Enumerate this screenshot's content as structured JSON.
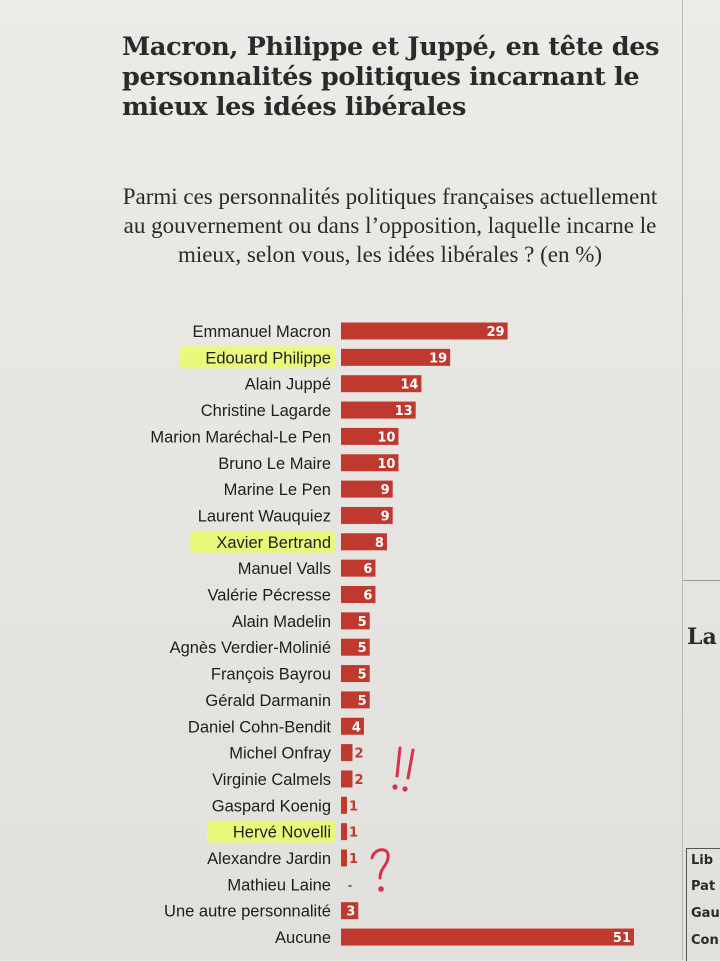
{
  "title": "Macron, Philippe et Juppé, en tête des personnalités politiques incarnant le mieux les idées libérales",
  "subtitle": "Parmi ces personnalités politiques françaises actuellement au gouvernement ou dans l’opposition, laquelle incarne le mieux, selon vous, les idées libérales ? (en %)",
  "colors": {
    "bar": "#c0392f",
    "highlight": "#e9fb6a",
    "handwriting": "#d9304d"
  },
  "handwritten_marks": [
    "!!",
    "?"
  ],
  "chart_data": {
    "type": "bar",
    "orientation": "horizontal",
    "title": "Macron, Philippe et Juppé, en tête des personnalités politiques incarnant le mieux les idées libérales",
    "subtitle": "Parmi ces personnalités politiques françaises actuellement au gouvernement ou dans l’opposition, laquelle incarne le mieux, selon vous, les idées libérales ? (en %)",
    "unit": "%",
    "xlim": [
      0,
      51
    ],
    "grid": false,
    "legend": "none",
    "categories": [
      "Emmanuel Macron",
      "Edouard Philippe",
      "Alain Juppé",
      "Christine Lagarde",
      "Marion Maréchal-Le Pen",
      "Bruno Le Maire",
      "Marine Le Pen",
      "Laurent Wauquiez",
      "Xavier Bertrand",
      "Manuel Valls",
      "Valérie Pécresse",
      "Alain Madelin",
      "Agnès Verdier-Molinié",
      "François Bayrou",
      "Gérald Darmanin",
      "Daniel Cohn-Bendit",
      "Michel Onfray",
      "Virginie Calmels",
      "Gaspard Koenig",
      "Hervé Novelli",
      "Alexandre Jardin",
      "Mathieu Laine",
      "Une autre personnalité",
      "Aucune"
    ],
    "values": [
      29,
      19,
      14,
      13,
      10,
      10,
      9,
      9,
      8,
      6,
      6,
      5,
      5,
      5,
      5,
      4,
      2,
      2,
      1,
      1,
      1,
      0,
      3,
      51
    ],
    "value_labels": [
      "29",
      "19",
      "14",
      "13",
      "10",
      "10",
      "9",
      "9",
      "8",
      "6",
      "6",
      "5",
      "5",
      "5",
      "5",
      "4",
      "2",
      "2",
      "1",
      "1",
      "1",
      "-",
      "3",
      "51"
    ],
    "highlighted": [
      "Edouard Philippe",
      "Xavier Bertrand",
      "Hervé Novelli"
    ]
  },
  "side_column": {
    "heading": "La",
    "cells": [
      "Lib",
      "Pat",
      "Gau",
      "Con"
    ]
  }
}
